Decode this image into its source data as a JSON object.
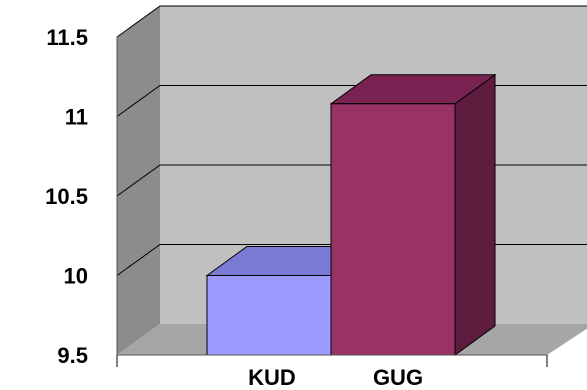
{
  "chart_data": {
    "type": "bar",
    "categories": [
      "KUD",
      "GUG"
    ],
    "values": [
      10.0,
      11.08
    ],
    "title": "",
    "xlabel": "",
    "ylabel": "",
    "ylim": [
      9.5,
      11.5
    ],
    "yticks": [
      "9.5",
      "10",
      "10.5",
      "11",
      "11.5"
    ],
    "grid": true,
    "legend": "none",
    "three_d": true
  },
  "colors": {
    "bar_kud_front": "#9c9cff",
    "bar_kud_top": "#7b7bd6",
    "bar_kud_side": "#6e6ec4",
    "bar_gug_front": "#993366",
    "bar_gug_top": "#7a2352",
    "bar_gug_side": "#5e1c3e",
    "wall": "#c0c0c0",
    "wall_side": "#8c8c8c",
    "floor": "#a6a6a6",
    "gridline": "#000000"
  }
}
